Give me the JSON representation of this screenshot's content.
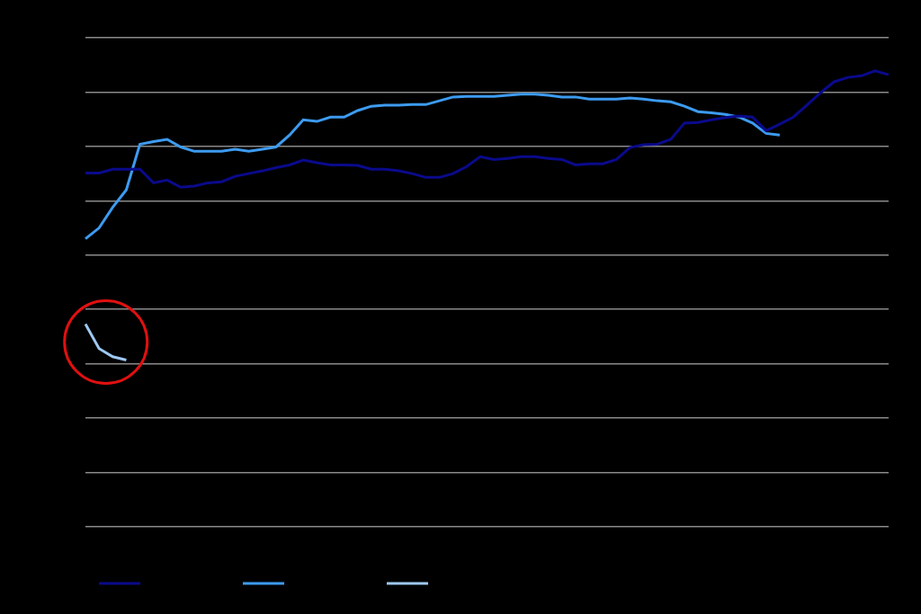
{
  "chart_data": {
    "type": "line",
    "categories": [
      null,
      null,
      null,
      null,
      null,
      null,
      null,
      null,
      null,
      null,
      null,
      null,
      null,
      null,
      null,
      null,
      null,
      null,
      null,
      null,
      null,
      null,
      null,
      null,
      null,
      null,
      null,
      null,
      null,
      null,
      null,
      null,
      null,
      null,
      null,
      null,
      null,
      null,
      null,
      null,
      null,
      null,
      null,
      null,
      null,
      null,
      null,
      null,
      null,
      null,
      null,
      null,
      null,
      null,
      null,
      null,
      null,
      null,
      null,
      null
    ],
    "series": [
      {
        "color": "#0a0a8c",
        "values": [
          6.51,
          6.51,
          6.58,
          6.58,
          6.58,
          6.33,
          6.38,
          6.25,
          6.27,
          6.33,
          6.35,
          6.45,
          6.5,
          6.55,
          6.61,
          6.66,
          6.75,
          6.7,
          6.66,
          6.66,
          6.65,
          6.58,
          6.58,
          6.55,
          6.5,
          6.43,
          6.43,
          6.5,
          6.63,
          6.81,
          6.76,
          6.78,
          6.81,
          6.81,
          6.78,
          6.76,
          6.66,
          6.68,
          6.68,
          6.76,
          6.98,
          7.03,
          7.04,
          7.13,
          7.43,
          7.44,
          7.49,
          7.53,
          7.56,
          7.54,
          7.29,
          7.41,
          7.54,
          7.76,
          7.99,
          8.19,
          8.27,
          8.3,
          8.39,
          8.32
        ]
      },
      {
        "color": "#3d9bf0",
        "values": [
          5.3,
          5.5,
          5.88,
          6.2,
          7.04,
          7.09,
          7.13,
          6.99,
          6.91,
          6.91,
          6.91,
          6.95,
          6.91,
          6.95,
          6.99,
          7.21,
          7.49,
          7.46,
          7.54,
          7.54,
          7.66,
          7.74,
          7.76,
          7.76,
          7.77,
          7.77,
          7.84,
          7.91,
          7.92,
          7.92,
          7.92,
          7.94,
          7.96,
          7.96,
          7.94,
          7.91,
          7.91,
          7.87,
          7.87,
          7.87,
          7.89,
          7.87,
          7.84,
          7.82,
          7.74,
          7.64,
          7.62,
          7.59,
          7.54,
          7.43,
          7.24,
          7.21,
          null,
          null,
          null,
          null,
          null,
          null,
          null,
          null
        ]
      },
      {
        "color": "#9dc8f0",
        "values": [
          3.73,
          3.28,
          3.13,
          3.07,
          null,
          null,
          null,
          null,
          null,
          null,
          null,
          null,
          null,
          null,
          null,
          null,
          null,
          null,
          null,
          null,
          null,
          null,
          null,
          null,
          null,
          null,
          null,
          null,
          null,
          null,
          null,
          null,
          null,
          null,
          null,
          null,
          null,
          null,
          null,
          null,
          null,
          null,
          null,
          null,
          null,
          null,
          null,
          null,
          null,
          null,
          null,
          null,
          null,
          null,
          null,
          null,
          null,
          null,
          null,
          null
        ]
      }
    ],
    "ylim": [
      0,
      9
    ],
    "yticks": [
      0,
      1,
      2,
      3,
      4,
      5,
      6,
      7,
      8,
      9
    ],
    "grid": true,
    "tick_labels": false,
    "legend": "bottom"
  }
}
